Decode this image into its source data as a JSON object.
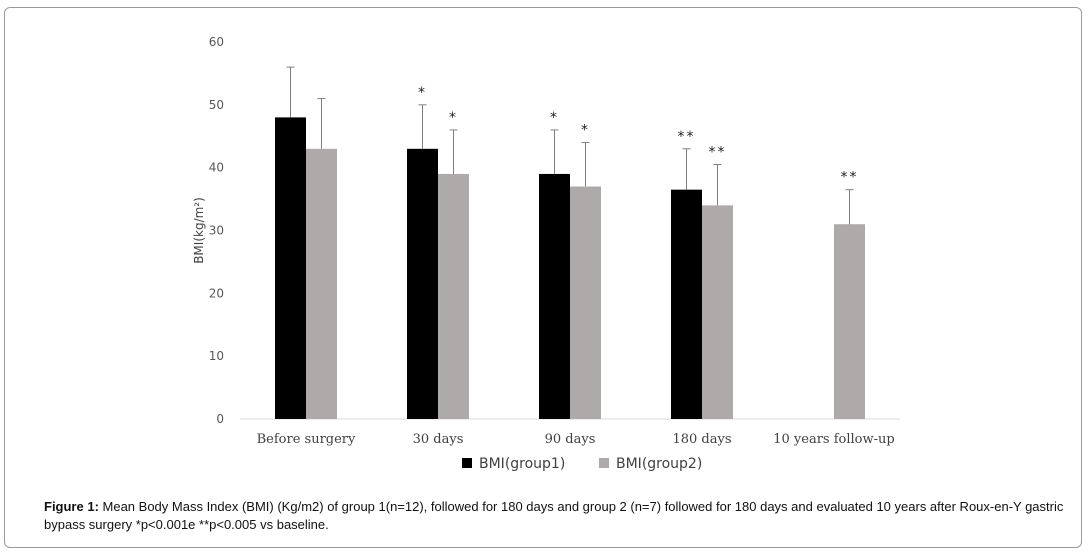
{
  "chart_data": {
    "type": "bar",
    "categories": [
      "Before surgery",
      "30 days",
      "90 days",
      "180 days",
      "10 years follow-up"
    ],
    "series": [
      {
        "name": "BMI(group1)",
        "color": "#000000",
        "values": [
          48,
          43,
          39,
          36.5,
          null
        ],
        "error_upper": [
          56,
          50,
          46,
          43,
          null
        ],
        "annotations": [
          "",
          "*",
          "*",
          "**",
          ""
        ]
      },
      {
        "name": "BMI(group2)",
        "color": "#aeaaaa",
        "values": [
          43,
          39,
          37,
          34,
          31
        ],
        "error_upper": [
          51,
          46,
          44,
          40.5,
          36.5
        ],
        "annotations": [
          "",
          "*",
          "*",
          "**",
          "**"
        ]
      }
    ],
    "ylabel": "BMI(kg/m²)",
    "xlabel": "",
    "ylim": [
      0,
      60
    ],
    "yticks": [
      0,
      10,
      20,
      30,
      40,
      50,
      60
    ],
    "grid": false,
    "legend_position": "bottom"
  },
  "caption": {
    "label": "Figure 1:",
    "text": " Mean Body Mass Index (BMI) (Kg/m2) of group 1(n=12), followed for 180 days and group 2 (n=7) followed for 180 days and evaluated 10 years after Roux-en-Y gastric bypass surgery *p<0.001e **p<0.005 vs baseline."
  }
}
